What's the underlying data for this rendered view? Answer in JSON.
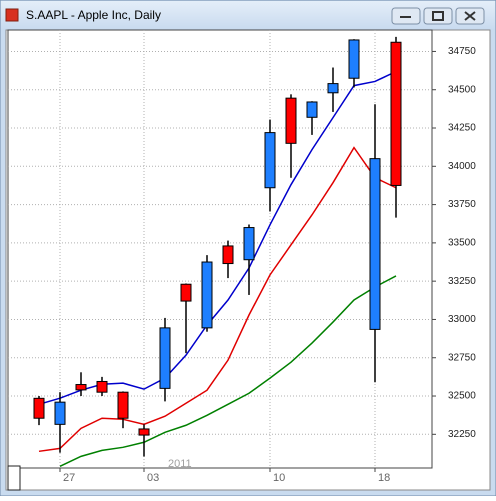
{
  "chart_data": {
    "type": "candlestick",
    "title": "S.AAPL - Apple Inc, Daily",
    "annotation": "2011",
    "categories": [
      null,
      "27",
      null,
      null,
      null,
      "03",
      null,
      null,
      null,
      null,
      null,
      "10",
      null,
      null,
      null,
      null,
      "18",
      null
    ],
    "open": [
      32485,
      32315,
      32575,
      32595,
      32525,
      32285,
      32550,
      33230,
      32945,
      33480,
      33390,
      33860,
      34445,
      34320,
      34480,
      34575,
      32935,
      34810
    ],
    "high": [
      32500,
      32525,
      32655,
      32625,
      32530,
      32315,
      33010,
      33235,
      33420,
      33515,
      33620,
      34305,
      34470,
      34425,
      34645,
      34830,
      34405,
      34845
    ],
    "low": [
      32310,
      32130,
      32500,
      32500,
      32290,
      32105,
      32465,
      32780,
      32920,
      33270,
      33160,
      33705,
      33925,
      34205,
      34355,
      34515,
      32590,
      33665
    ],
    "close": [
      32355,
      32460,
      32540,
      32525,
      32355,
      32245,
      32945,
      33120,
      33375,
      33365,
      33600,
      34220,
      34150,
      34420,
      34540,
      34825,
      34050,
      33875
    ],
    "up_color": "#1e7fff",
    "down_color": "#ff0000",
    "lines": [
      {
        "color": "#0000cc",
        "values": [
          32446,
          32486,
          32538,
          32577,
          32584,
          32545,
          32617,
          32767,
          32963,
          33127,
          33336,
          33618,
          33880,
          34109,
          34318,
          34527,
          34554,
          34619
        ]
      },
      {
        "color": "#e00000",
        "values": [
          32139,
          32158,
          32289,
          32355,
          32348,
          32315,
          32368,
          32453,
          32538,
          32734,
          33029,
          33291,
          33487,
          33683,
          33893,
          34122,
          33926,
          33860
        ]
      },
      {
        "color": "#008000",
        "values": [
          null,
          32041,
          32106,
          32145,
          32165,
          32198,
          32263,
          32309,
          32374,
          32446,
          32518,
          32617,
          32721,
          32846,
          32983,
          33127,
          33212,
          33284
        ]
      }
    ],
    "ylim": [
      32030,
      34890
    ],
    "yticks": [
      32250,
      32500,
      32750,
      33000,
      33250,
      33500,
      33750,
      34000,
      34250,
      34500,
      34750
    ],
    "grid": true
  }
}
